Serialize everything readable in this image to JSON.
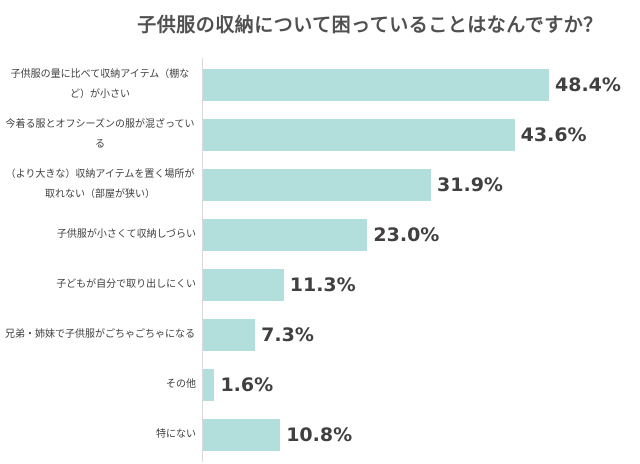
{
  "chart_data": {
    "type": "bar",
    "orientation": "horizontal",
    "title": "子供服の収納について困っていることはなんですか？",
    "categories": [
      "子供服の量に比べて収納アイテム（棚など）が小さい",
      "今着る服とオフシーズンの服が混ざっている",
      "（より大きな）収納アイテムを置く場所が取れない（部屋が狭い）",
      "子供服が小さくて収納しづらい",
      "子どもが自分で取り出しにくい",
      "兄弟・姉妹で子供服がごちゃごちゃになる",
      "その他",
      "特にない"
    ],
    "values": [
      48.4,
      43.6,
      31.9,
      23.0,
      11.3,
      7.3,
      1.6,
      10.8
    ],
    "value_labels": [
      "48.4%",
      "43.6%",
      "31.9%",
      "23.0%",
      "11.3%",
      "7.3%",
      "1.6%",
      "10.8%"
    ],
    "unit": "%",
    "xlim": [
      0,
      50
    ],
    "grid": false,
    "legend": "none",
    "bar_color": "#b2dfdb"
  }
}
